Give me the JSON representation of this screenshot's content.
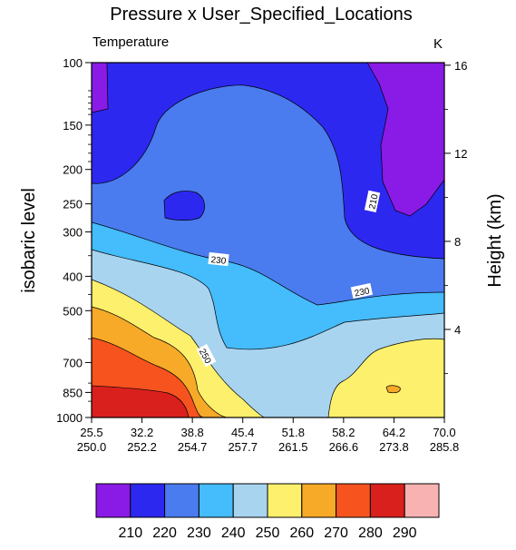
{
  "chart_data": {
    "type": "heatmap",
    "title": "Pressure x User_Specified_Locations",
    "left_label": "Temperature",
    "right_label": "K",
    "ylabel": "isobaric level",
    "ylabel_right": "Height (km)",
    "y_scale": "log",
    "ylim": [
      1000,
      100
    ],
    "y_ticks": [
      100,
      150,
      200,
      250,
      300,
      400,
      500,
      700,
      850,
      1000
    ],
    "y_right_ticks": [
      16,
      12,
      8,
      4
    ],
    "x_tick_labels": [
      [
        "25.5",
        "250.0"
      ],
      [
        "32.2",
        "252.2"
      ],
      [
        "38.8",
        "254.7"
      ],
      [
        "45.4",
        "257.7"
      ],
      [
        "51.8",
        "261.5"
      ],
      [
        "58.2",
        "266.6"
      ],
      [
        "64.2",
        "273.8"
      ],
      [
        "70.0",
        "285.8"
      ]
    ],
    "contour_levels": [
      210,
      220,
      230,
      240,
      250,
      260,
      270,
      280,
      290
    ],
    "palette": [
      "#8a1ae6",
      "#2d28f0",
      "#4a7bef",
      "#45bcfb",
      "#a8d4f0",
      "#fdf06c",
      "#f7a928",
      "#f6531f",
      "#d9201c",
      "#f9b2b2"
    ],
    "line_labels": [
      {
        "text": "210"
      },
      {
        "text": "230"
      },
      {
        "text": "230"
      },
      {
        "text": "250"
      }
    ]
  }
}
